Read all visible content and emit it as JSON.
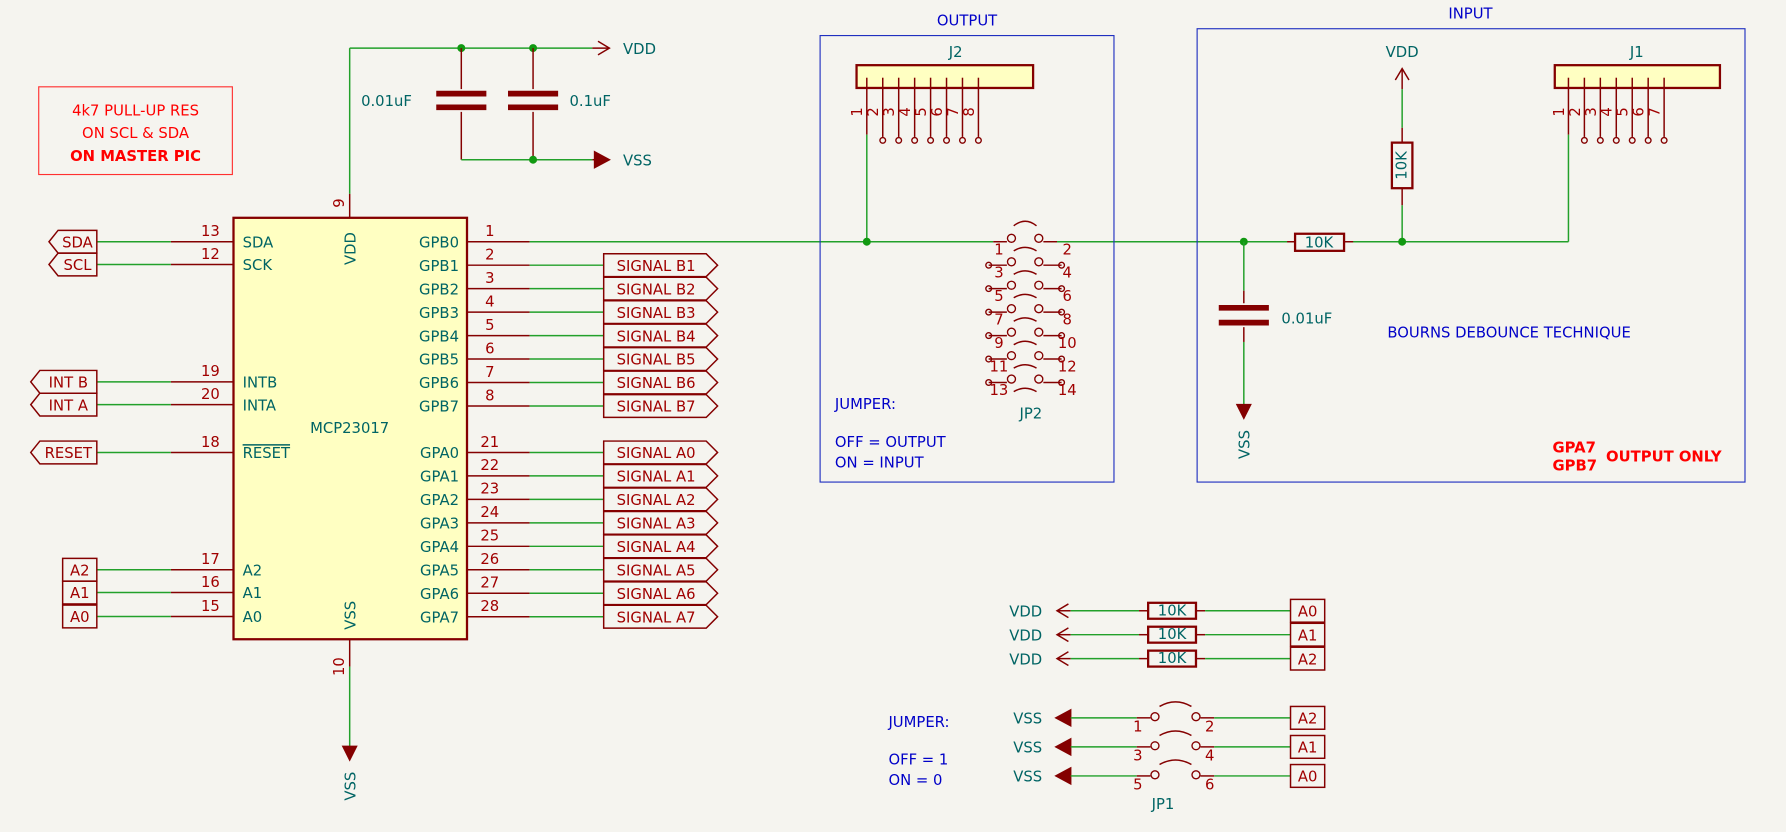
{
  "colors": {
    "background": "#f5f4ef",
    "wire": "#22a02a",
    "junction": "#119911",
    "component": "#840000",
    "chip_fill": "#ffffc2",
    "field_text": "#006464",
    "pin_text": "#a00000",
    "note_text": "#0000c8",
    "warning": "#ff0000"
  },
  "note": {
    "lines": [
      "4k7 PULL-UP RES",
      "ON SCL & SDA",
      "ON MASTER PIC"
    ]
  },
  "chip": {
    "ref": "MCP23017",
    "top_pin": {
      "num": "9",
      "name": "VDD"
    },
    "bottom_pin": {
      "num": "10",
      "name": "VSS"
    },
    "left_pins": [
      {
        "num": "13",
        "name": "SDA",
        "label": "SDA",
        "label_kind": "global"
      },
      {
        "num": "12",
        "name": "SCK",
        "label": "SCL",
        "label_kind": "global"
      },
      {
        "num": "19",
        "name": "INTB",
        "label": "INT B",
        "label_kind": "global"
      },
      {
        "num": "20",
        "name": "INTA",
        "label": "INT A",
        "label_kind": "global"
      },
      {
        "num": "18",
        "name": "RESET",
        "label": "RESET",
        "label_kind": "global"
      },
      {
        "num": "17",
        "name": "A2",
        "label": "A2",
        "label_kind": "hierarchical"
      },
      {
        "num": "16",
        "name": "A1",
        "label": "A1",
        "label_kind": "hierarchical"
      },
      {
        "num": "15",
        "name": "A0",
        "label": "A0",
        "label_kind": "hierarchical"
      }
    ],
    "right_pins_b": [
      {
        "num": "1",
        "name": "GPB0",
        "label": ""
      },
      {
        "num": "2",
        "name": "GPB1",
        "label": "SIGNAL B1"
      },
      {
        "num": "3",
        "name": "GPB2",
        "label": "SIGNAL B2"
      },
      {
        "num": "4",
        "name": "GPB3",
        "label": "SIGNAL B3"
      },
      {
        "num": "5",
        "name": "GPB4",
        "label": "SIGNAL B4"
      },
      {
        "num": "6",
        "name": "GPB5",
        "label": "SIGNAL B5"
      },
      {
        "num": "7",
        "name": "GPB6",
        "label": "SIGNAL B6"
      },
      {
        "num": "8",
        "name": "GPB7",
        "label": "SIGNAL B7"
      }
    ],
    "right_pins_a": [
      {
        "num": "21",
        "name": "GPA0",
        "label": "SIGNAL A0"
      },
      {
        "num": "22",
        "name": "GPA1",
        "label": "SIGNAL A1"
      },
      {
        "num": "23",
        "name": "GPA2",
        "label": "SIGNAL A2"
      },
      {
        "num": "24",
        "name": "GPA3",
        "label": "SIGNAL A3"
      },
      {
        "num": "25",
        "name": "GPA4",
        "label": "SIGNAL A4"
      },
      {
        "num": "26",
        "name": "GPA5",
        "label": "SIGNAL A5"
      },
      {
        "num": "27",
        "name": "GPA6",
        "label": "SIGNAL A6"
      },
      {
        "num": "28",
        "name": "GPA7",
        "label": "SIGNAL A7"
      }
    ]
  },
  "decoupling": {
    "cap1": "0.01uF",
    "cap2": "0.1uF",
    "vdd": "VDD",
    "vss": "VSS",
    "chip_vss": "VSS"
  },
  "output_section": {
    "title": "OUTPUT",
    "connector_ref": "J2",
    "connector_pins": [
      "1",
      "2",
      "3",
      "4",
      "5",
      "6",
      "7",
      "8"
    ],
    "jumper_ref": "JP2",
    "jumper_pins": [
      "1",
      "2",
      "3",
      "4",
      "5",
      "6",
      "7",
      "8",
      "9",
      "10",
      "11",
      "12",
      "13",
      "14"
    ],
    "notes": [
      "JUMPER:",
      "OFF = OUTPUT",
      " ON = INPUT"
    ]
  },
  "input_section": {
    "title": "INPUT",
    "vdd": "VDD",
    "vss": "VSS",
    "pullup": "10K",
    "series": "10K",
    "cap": "0.01uF",
    "connector_ref": "J1",
    "connector_pins": [
      "1",
      "2",
      "3",
      "4",
      "5",
      "6",
      "7"
    ],
    "note": "BOURNS DEBOUNCE TECHNIQUE",
    "warning_pins": [
      "GPA7",
      "GPB7"
    ],
    "warning_suffix": "OUTPUT ONLY"
  },
  "address": {
    "pullups": [
      {
        "power": "VDD",
        "value": "10K",
        "label": "A0"
      },
      {
        "power": "VDD",
        "value": "10K",
        "label": "A1"
      },
      {
        "power": "VDD",
        "value": "10K",
        "label": "A2"
      }
    ],
    "jumper": {
      "ref": "JP1",
      "rows": [
        {
          "power": "VSS",
          "pin_a": "1",
          "pin_b": "2",
          "label": "A2"
        },
        {
          "power": "VSS",
          "pin_a": "3",
          "pin_b": "4",
          "label": "A1"
        },
        {
          "power": "VSS",
          "pin_a": "5",
          "pin_b": "6",
          "label": "A0"
        }
      ],
      "notes": [
        "JUMPER:",
        "OFF = 1",
        " ON = 0"
      ]
    }
  }
}
